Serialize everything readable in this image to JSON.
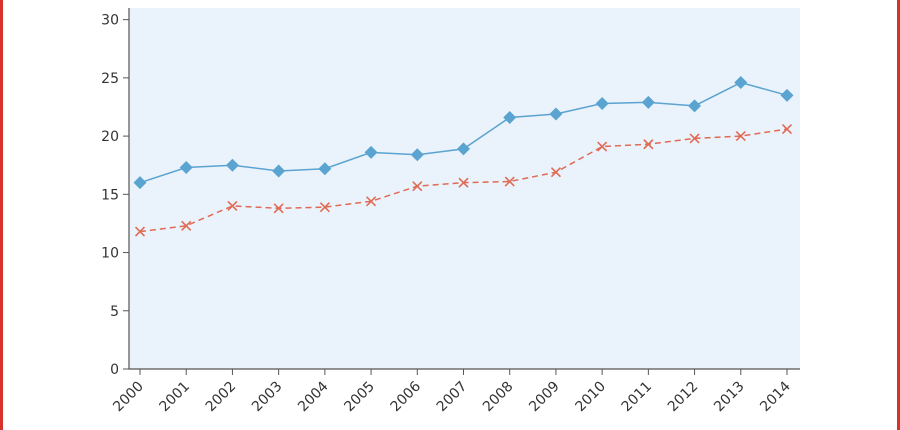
{
  "colors": {
    "frame_border": "#d7312b",
    "plot_background": "#eaf3fb",
    "axis": "#555555"
  },
  "chart_data": {
    "type": "line",
    "title": "",
    "xlabel": "",
    "ylabel": "",
    "x": [
      "2000",
      "2001",
      "2002",
      "2003",
      "2004",
      "2005",
      "2006",
      "2007",
      "2008",
      "2009",
      "2010",
      "2011",
      "2012",
      "2013",
      "2014"
    ],
    "ylim": [
      0,
      31
    ],
    "yticks": [
      0,
      5,
      10,
      15,
      20,
      25,
      30
    ],
    "grid": false,
    "legend": "none",
    "series": [
      {
        "color": "#5ba3d0",
        "line_style": "solid",
        "marker": "diamond",
        "values": [
          16.0,
          17.3,
          17.5,
          17.0,
          17.2,
          18.6,
          18.4,
          18.9,
          21.6,
          21.9,
          22.8,
          22.9,
          22.6,
          24.6,
          23.5
        ]
      },
      {
        "color": "#e06b55",
        "line_style": "dashed",
        "marker": "x",
        "values": [
          11.8,
          12.3,
          14.0,
          13.8,
          13.9,
          14.4,
          15.7,
          16.0,
          16.1,
          16.9,
          19.1,
          19.3,
          19.8,
          20.0,
          20.6
        ]
      }
    ]
  }
}
